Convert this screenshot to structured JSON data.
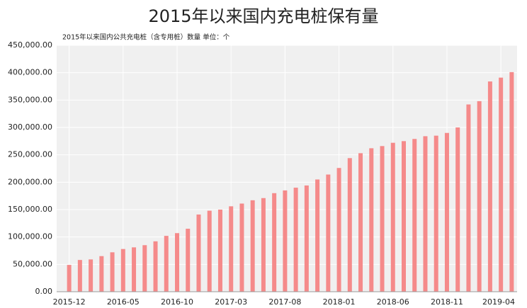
{
  "chart_data": {
    "type": "bar",
    "title": "2015年以来国内充电桩保有量",
    "subtitle": "2015年以来国内公共充电桩（含专用桩）数量  单位：个",
    "categories": [
      "2015-12",
      null,
      null,
      null,
      null,
      "2016-05",
      null,
      null,
      null,
      null,
      "2016-10",
      null,
      null,
      null,
      null,
      "2017-03",
      null,
      null,
      null,
      null,
      "2017-08",
      null,
      null,
      null,
      null,
      "2018-01",
      null,
      null,
      null,
      null,
      "2018-06",
      null,
      null,
      null,
      null,
      "2018-11",
      null,
      null,
      null,
      null,
      "2019-04",
      null
    ],
    "values": [
      49000,
      58000,
      59000,
      65000,
      72000,
      78000,
      81000,
      85000,
      92000,
      102000,
      107000,
      115000,
      141000,
      148000,
      150000,
      156000,
      161000,
      167000,
      171000,
      180000,
      185000,
      190000,
      194000,
      205000,
      214000,
      226000,
      244000,
      253000,
      262000,
      266000,
      272000,
      275000,
      279000,
      284000,
      285000,
      290000,
      300000,
      342000,
      348000,
      384000,
      391000,
      401000
    ],
    "color": "#f58a8a",
    "ylim": [
      0,
      450000
    ],
    "yticks": [
      {
        "value": 0,
        "label": "0.00"
      },
      {
        "value": 50000,
        "label": "50,000.00"
      },
      {
        "value": 100000,
        "label": "100,000.00"
      },
      {
        "value": 150000,
        "label": "150,000.00"
      },
      {
        "value": 200000,
        "label": "200,000.00"
      },
      {
        "value": 250000,
        "label": "250,000.00"
      },
      {
        "value": 300000,
        "label": "300,000.00"
      },
      {
        "value": 350000,
        "label": "350,000.00"
      },
      {
        "value": 400000,
        "label": "400,000.00"
      },
      {
        "value": 450000,
        "label": "450,000.00"
      }
    ],
    "grid": true
  }
}
